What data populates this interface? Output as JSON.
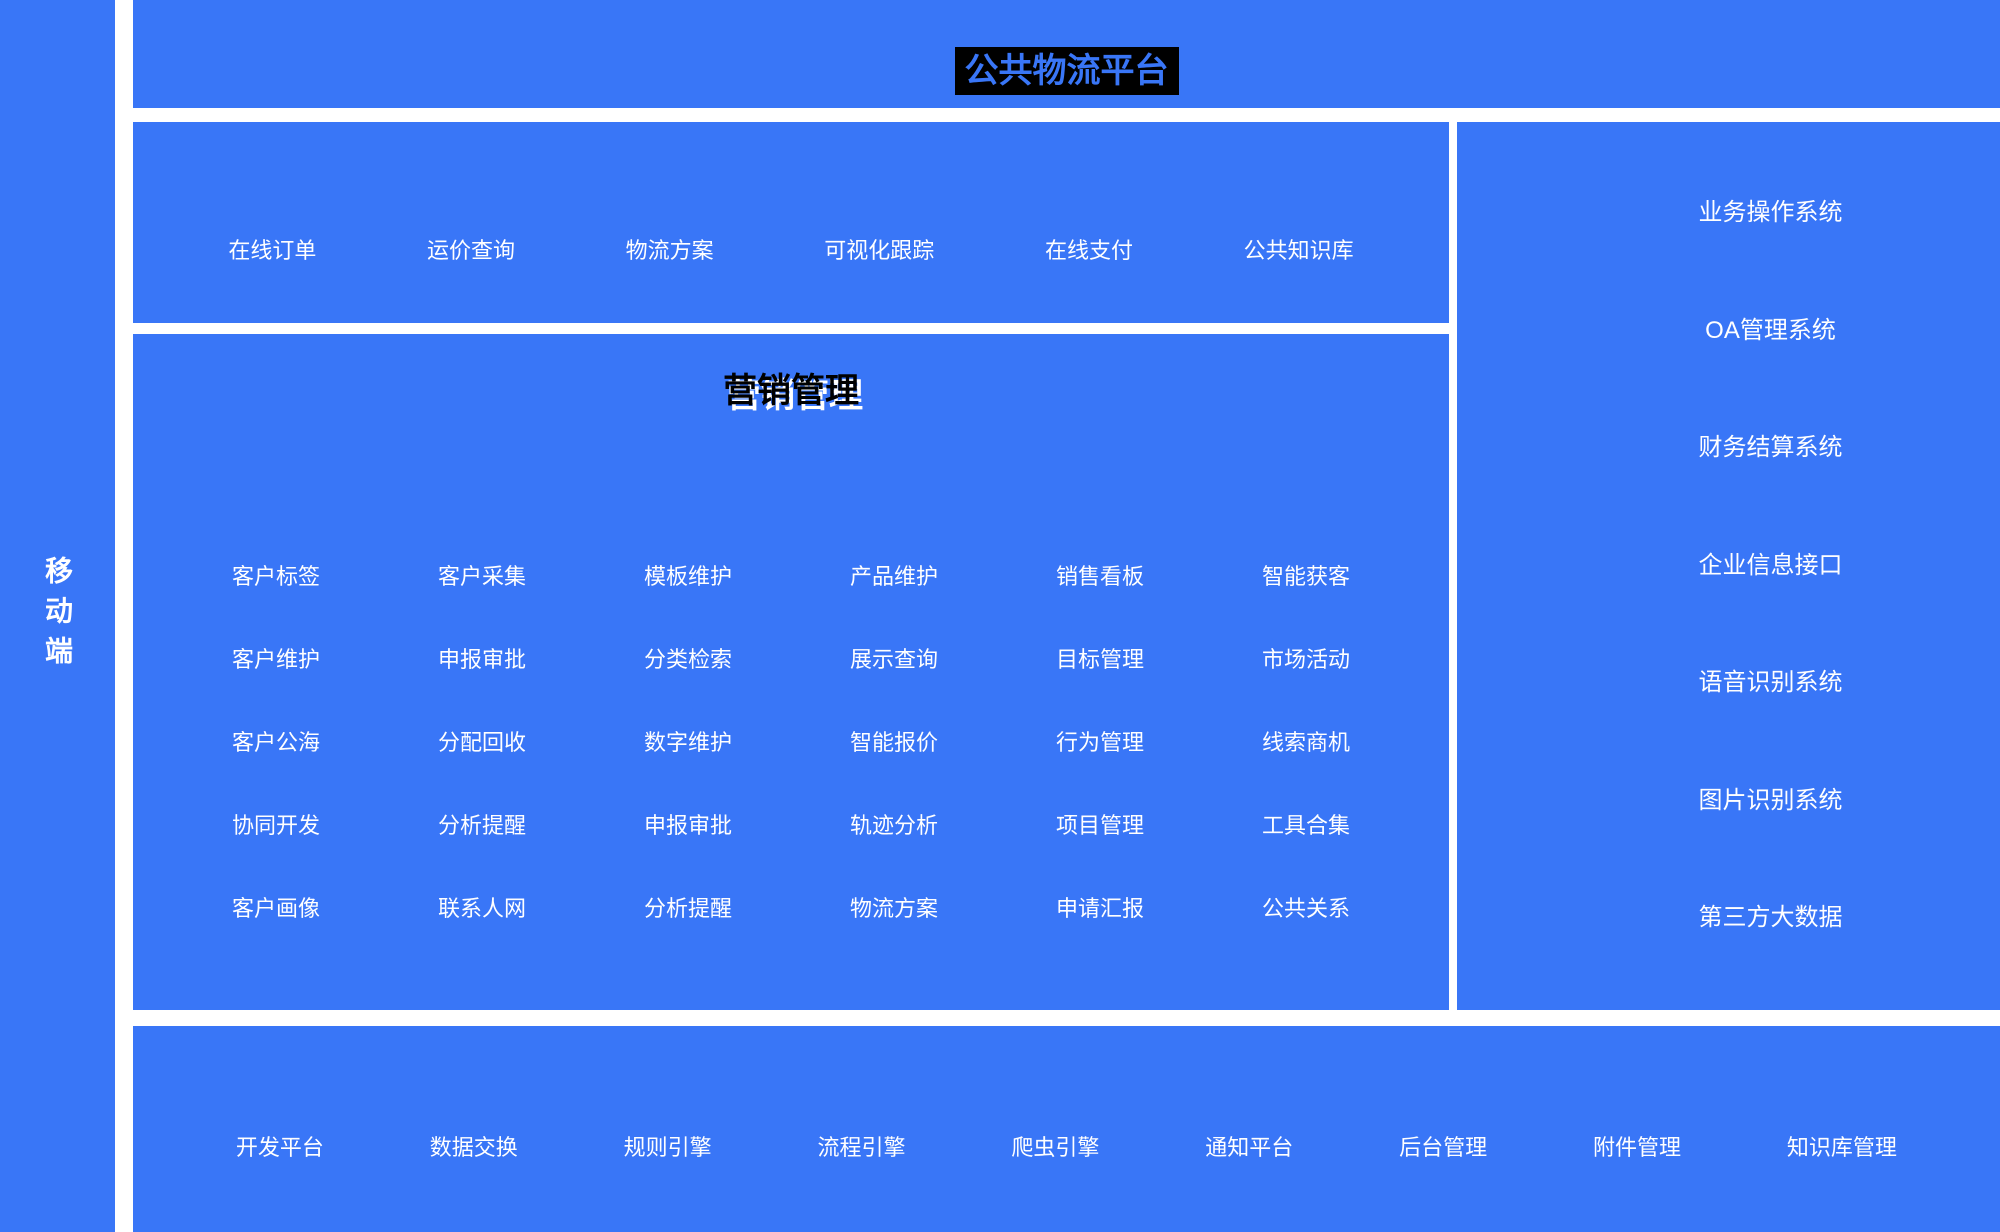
{
  "colors": {
    "block_blue": "#3976F7",
    "banner_title_highlight_bg": "#000000",
    "banner_title_text": "#3976F7",
    "marketing_title_text": "#000000",
    "item_text": "#FFFFFF"
  },
  "left_sidebar": {
    "label": "移动端"
  },
  "top_banner": {
    "title": "公共物流平台"
  },
  "functions_bar": {
    "items": [
      "在线订单",
      "运价查询",
      "物流方案",
      "可视化跟踪",
      "在线支付",
      "公共知识库"
    ]
  },
  "marketing": {
    "title": "营销管理",
    "rows": [
      [
        "客户标签",
        "客户采集",
        "模板维护",
        "产品维护",
        "销售看板",
        "智能获客"
      ],
      [
        "客户维护",
        "申报审批",
        "分类检索",
        "展示查询",
        "目标管理",
        "市场活动"
      ],
      [
        "客户公海",
        "分配回收",
        "数字维护",
        "智能报价",
        "行为管理",
        "线索商机"
      ],
      [
        "协同开发",
        "分析提醒",
        "申报审批",
        "轨迹分析",
        "项目管理",
        "工具合集"
      ],
      [
        "客户画像",
        "联系人网",
        "分析提醒",
        "物流方案",
        "申请汇报",
        "公共关系"
      ]
    ]
  },
  "right_sidebar": {
    "items": [
      "业务操作系统",
      "OA管理系统",
      "财务结算系统",
      "企业信息接口",
      "语音识别系统",
      "图片识别系统",
      "第三方大数据"
    ]
  },
  "bottom_bar": {
    "items": [
      "开发平台",
      "数据交换",
      "规则引擎",
      "流程引擎",
      "爬虫引擎",
      "通知平台",
      "后台管理",
      "附件管理",
      "知识库管理"
    ]
  }
}
